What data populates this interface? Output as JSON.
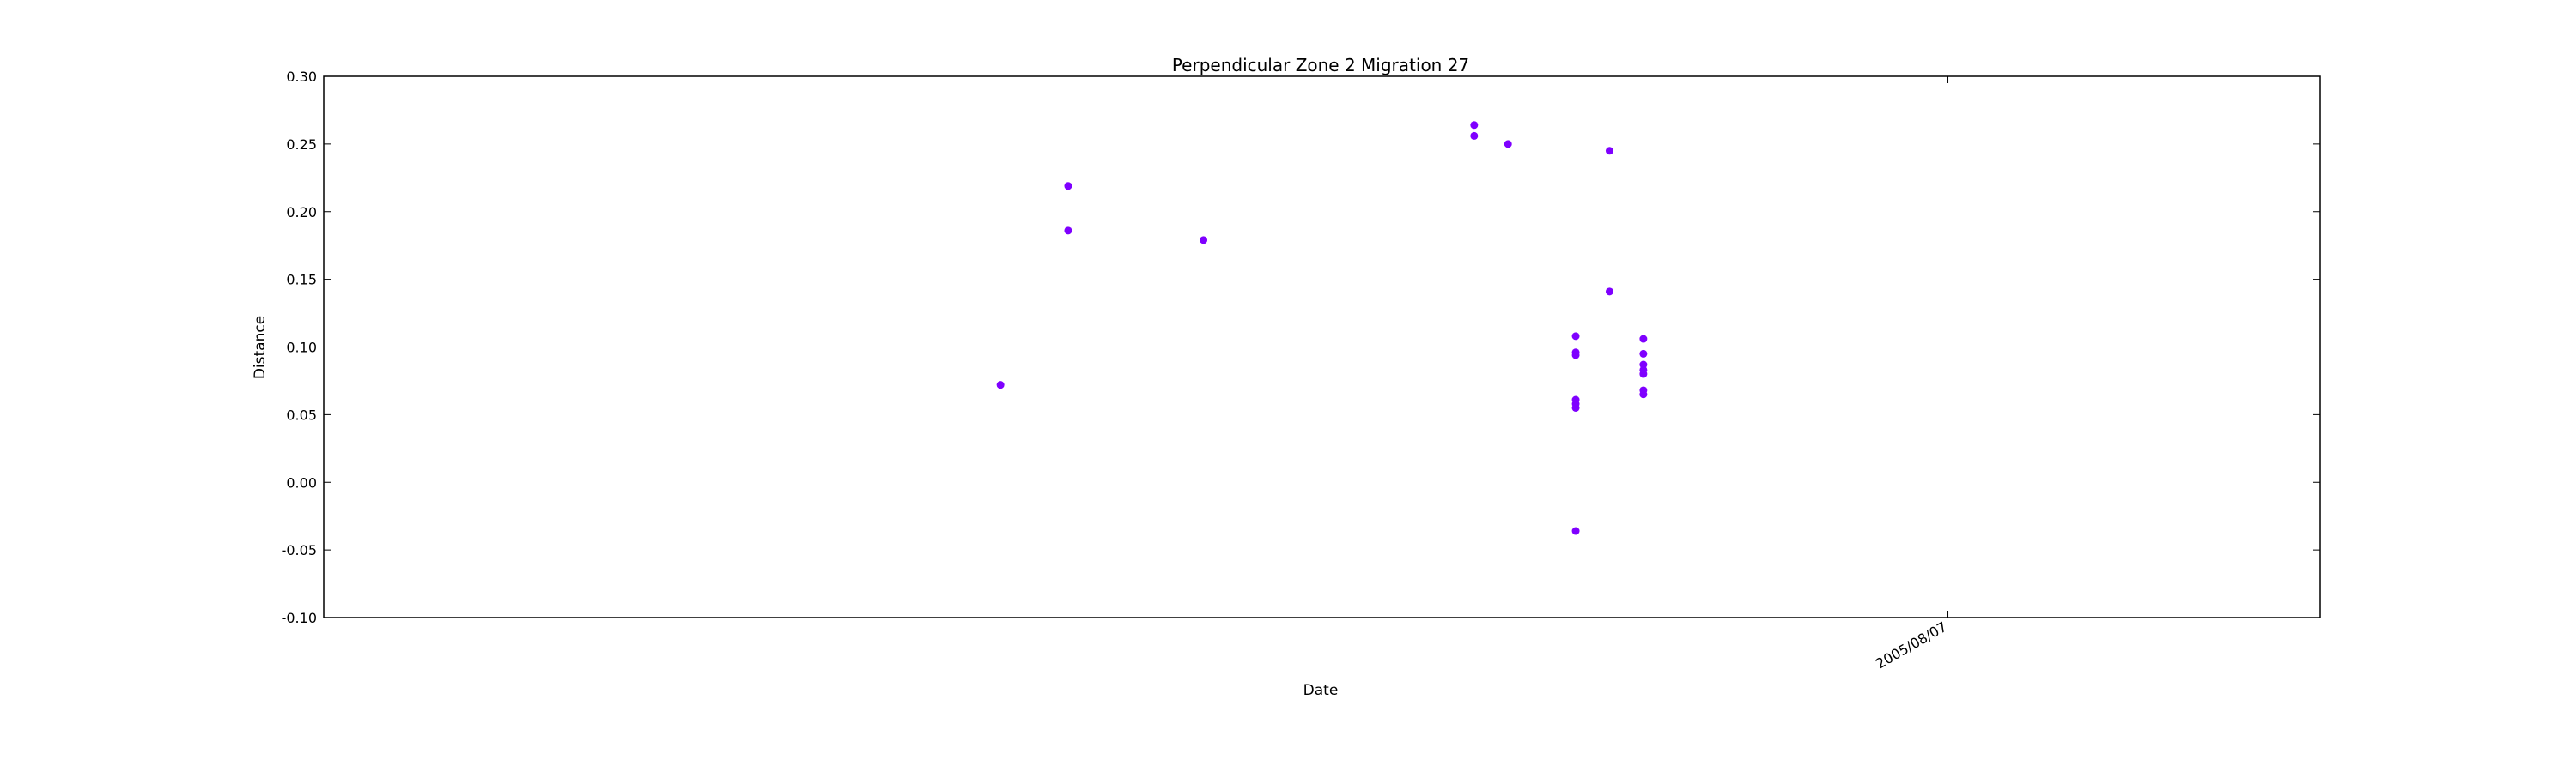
{
  "chart_data": {
    "type": "scatter",
    "title": "Perpendicular Zone 2 Migration 27",
    "xlabel": "Date",
    "ylabel": "Distance",
    "ylim": [
      -0.1,
      0.3
    ],
    "yticks": [
      "0.30",
      "0.25",
      "0.20",
      "0.15",
      "0.10",
      "0.05",
      "0.00",
      "-0.05",
      "-0.10"
    ],
    "xlim": [
      "2005/06/20",
      "2005/08/18"
    ],
    "xticks": [
      {
        "date": "2005/08/07",
        "label": "2005/08/07"
      }
    ],
    "grid": false,
    "marker_color": "#7f00ff",
    "points": [
      {
        "x": "2005/07/10",
        "y": 0.072
      },
      {
        "x": "2005/07/12",
        "y": 0.219
      },
      {
        "x": "2005/07/12",
        "y": 0.186
      },
      {
        "x": "2005/07/16",
        "y": 0.179
      },
      {
        "x": "2005/07/24",
        "y": 0.264
      },
      {
        "x": "2005/07/24",
        "y": 0.256
      },
      {
        "x": "2005/07/25",
        "y": 0.25
      },
      {
        "x": "2005/07/27",
        "y": 0.108
      },
      {
        "x": "2005/07/27",
        "y": 0.096
      },
      {
        "x": "2005/07/27",
        "y": 0.094
      },
      {
        "x": "2005/07/27",
        "y": 0.061
      },
      {
        "x": "2005/07/27",
        "y": 0.058
      },
      {
        "x": "2005/07/27",
        "y": 0.055
      },
      {
        "x": "2005/07/27",
        "y": -0.036
      },
      {
        "x": "2005/07/28",
        "y": 0.245
      },
      {
        "x": "2005/07/28",
        "y": 0.141
      },
      {
        "x": "2005/07/29",
        "y": 0.106
      },
      {
        "x": "2005/07/29",
        "y": 0.095
      },
      {
        "x": "2005/07/29",
        "y": 0.087
      },
      {
        "x": "2005/07/29",
        "y": 0.083
      },
      {
        "x": "2005/07/29",
        "y": 0.068
      },
      {
        "x": "2005/07/29",
        "y": 0.065
      },
      {
        "x": "2005/07/29",
        "y": 0.08
      }
    ]
  }
}
